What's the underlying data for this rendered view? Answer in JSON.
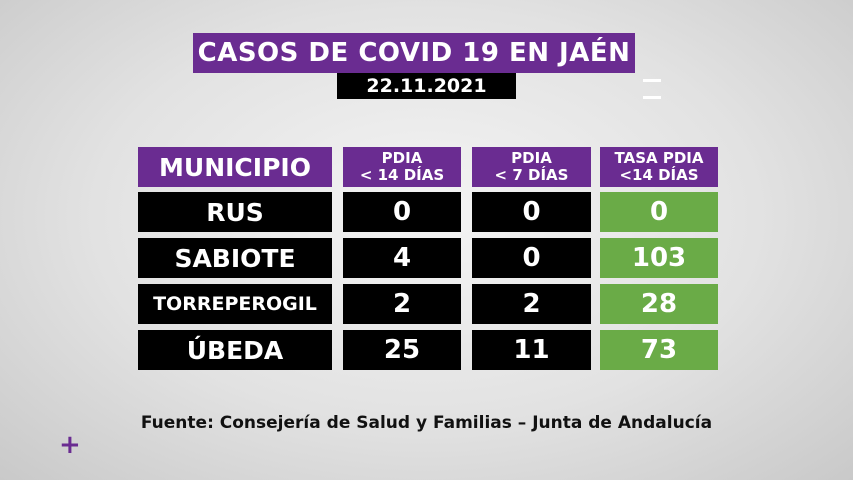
{
  "header": {
    "title": "CASOS DE COVID 19 EN JAÉN",
    "date": "22.11.2021"
  },
  "table": {
    "columns": [
      [
        "MUNICIPIO"
      ],
      [
        "PDIA",
        "< 14 DÍAS"
      ],
      [
        "PDIA",
        "< 7 DÍAS"
      ],
      [
        "TASA PDIA",
        "<14 DÍAS"
      ]
    ],
    "rows": [
      [
        "RUS",
        0,
        0,
        0
      ],
      [
        "SABIOTE",
        4,
        0,
        103
      ],
      [
        "TORREPEROGIL",
        2,
        2,
        28
      ],
      [
        "ÚBEDA",
        25,
        11,
        73
      ]
    ]
  },
  "source": "Fuente: Consejería de Salud y Familias – Junta de Andalucía"
}
